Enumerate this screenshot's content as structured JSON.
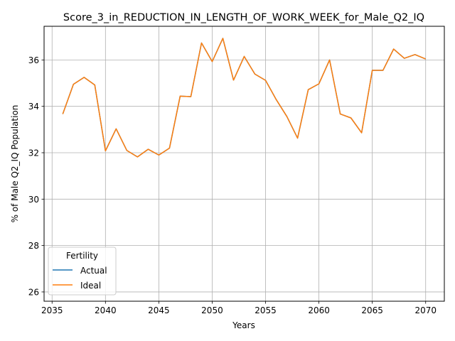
{
  "chart_data": {
    "type": "line",
    "title": "Score_3_in_REDUCTION_IN_LENGTH_OF_WORK_WEEK_for_Male_Q2_IQ",
    "xlabel": "Years",
    "ylabel": "% of Male Q2_IQ Population",
    "xlim": [
      2034.25,
      2071.75
    ],
    "ylim": [
      25.6,
      37.45
    ],
    "xticks": [
      2035,
      2040,
      2045,
      2050,
      2055,
      2060,
      2065,
      2070
    ],
    "yticks": [
      26,
      28,
      30,
      32,
      34,
      36
    ],
    "grid": true,
    "legend": {
      "title": "Fertility",
      "placement": "lower-left",
      "entries": [
        "Actual",
        "Ideal"
      ]
    },
    "x": [
      2036,
      2037,
      2038,
      2039,
      2040,
      2041,
      2042,
      2043,
      2044,
      2045,
      2046,
      2047,
      2048,
      2049,
      2050,
      2051,
      2052,
      2053,
      2054,
      2055,
      2056,
      2057,
      2058,
      2059,
      2060,
      2061,
      2062,
      2063,
      2064,
      2065,
      2066,
      2067,
      2068,
      2069,
      2070
    ],
    "series": [
      {
        "name": "Actual",
        "color": "#1f77b4",
        "values": [
          33.67,
          34.95,
          35.25,
          34.92,
          32.08,
          33.03,
          32.1,
          31.82,
          32.15,
          31.9,
          32.2,
          34.44,
          34.42,
          36.73,
          35.93,
          36.93,
          35.13,
          36.15,
          35.39,
          35.12,
          34.29,
          33.56,
          32.63,
          34.72,
          34.97,
          36.0,
          33.67,
          33.5,
          32.86,
          35.55,
          35.55,
          36.47,
          36.07,
          36.23,
          36.04
        ]
      },
      {
        "name": "Ideal",
        "color": "#ff7f0e",
        "values": [
          33.67,
          34.95,
          35.25,
          34.92,
          32.08,
          33.03,
          32.1,
          31.82,
          32.15,
          31.9,
          32.2,
          34.44,
          34.42,
          36.73,
          35.93,
          36.93,
          35.13,
          36.15,
          35.39,
          35.12,
          34.29,
          33.56,
          32.63,
          34.72,
          34.97,
          36.0,
          33.67,
          33.5,
          32.86,
          35.55,
          35.55,
          36.47,
          36.07,
          36.23,
          36.04
        ]
      }
    ]
  }
}
